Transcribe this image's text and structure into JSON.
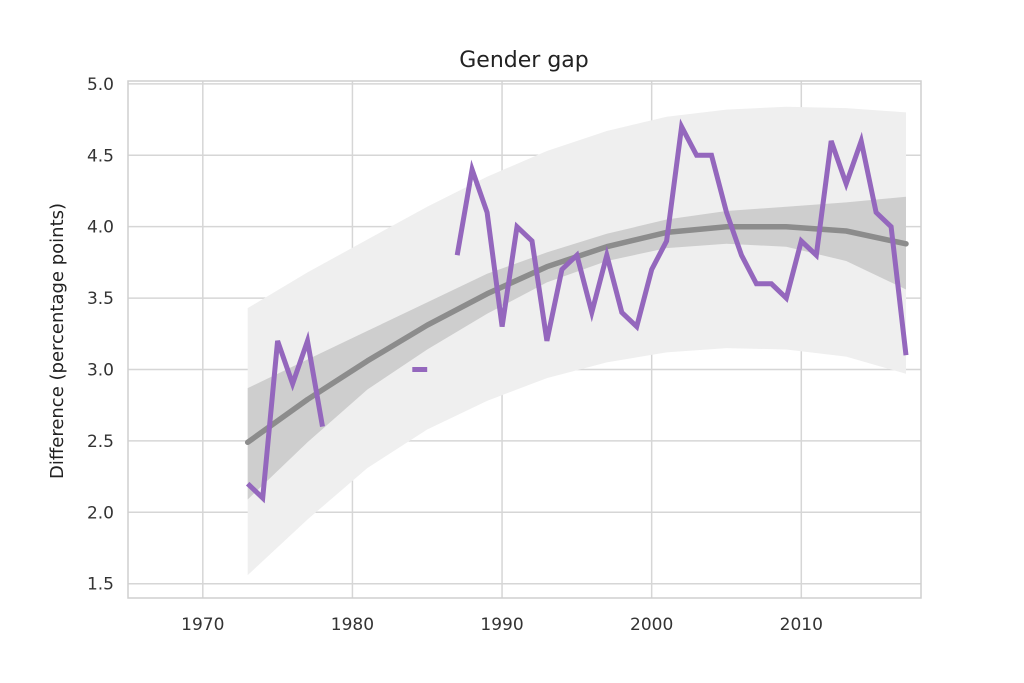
{
  "chart_data": {
    "type": "line",
    "title": "Gender gap",
    "xlabel": "",
    "ylabel": "Difference (percentage points)",
    "xlim": [
      1965,
      2018
    ],
    "ylim": [
      1.4,
      5.02
    ],
    "xticks": [
      1970,
      1980,
      1990,
      2000,
      2010
    ],
    "yticks": [
      1.5,
      2.0,
      2.5,
      3.0,
      3.5,
      4.0,
      4.5,
      5.0
    ],
    "xtick_labels": [
      "1970",
      "1980",
      "1990",
      "2000",
      "2010"
    ],
    "ytick_labels": [
      "1.5",
      "2.0",
      "2.5",
      "3.0",
      "3.5",
      "4.0",
      "4.5",
      "5.0"
    ],
    "grid": true,
    "colors": {
      "series": "#9467bd",
      "trend": "#8c8c8c",
      "band_inner": "#c8c8c8",
      "band_outer": "#efefef",
      "grid": "#d6d6d6"
    },
    "series": [
      {
        "points": [
          [
            1973,
            2.2
          ],
          [
            1974,
            2.1
          ],
          [
            1975,
            3.2
          ],
          [
            1976,
            2.9
          ],
          [
            1977,
            3.2
          ],
          [
            1978,
            2.6
          ],
          [
            1984,
            3.0
          ],
          [
            1985,
            3.0
          ],
          [
            1987,
            3.8
          ],
          [
            1988,
            4.4
          ],
          [
            1989,
            4.1
          ],
          [
            1990,
            3.3
          ],
          [
            1991,
            4.0
          ],
          [
            1992,
            3.9
          ],
          [
            1993,
            3.2
          ],
          [
            1994,
            3.7
          ],
          [
            1995,
            3.8
          ],
          [
            1996,
            3.4
          ],
          [
            1997,
            3.8
          ],
          [
            1998,
            3.4
          ],
          [
            1999,
            3.3
          ],
          [
            2000,
            3.7
          ],
          [
            2001,
            3.9
          ],
          [
            2002,
            4.7
          ],
          [
            2003,
            4.5
          ],
          [
            2004,
            4.5
          ],
          [
            2005,
            4.1
          ],
          [
            2006,
            3.8
          ],
          [
            2007,
            3.6
          ],
          [
            2008,
            3.6
          ],
          [
            2009,
            3.5
          ],
          [
            2010,
            3.9
          ],
          [
            2011,
            3.8
          ],
          [
            2012,
            4.6
          ],
          [
            2013,
            4.3
          ],
          [
            2014,
            4.6
          ],
          [
            2015,
            4.1
          ],
          [
            2016,
            4.0
          ],
          [
            2017,
            3.1
          ]
        ],
        "segments": [
          [
            1973,
            1978
          ],
          [
            1984,
            1985
          ],
          [
            1987,
            2017
          ]
        ]
      }
    ],
    "trend": {
      "x": [
        1973,
        1977,
        1981,
        1985,
        1989,
        1993,
        1997,
        2001,
        2005,
        2009,
        2013,
        2017
      ],
      "y": [
        2.49,
        2.79,
        3.06,
        3.31,
        3.53,
        3.72,
        3.86,
        3.96,
        4.0,
        4.0,
        3.97,
        3.88
      ],
      "inner_band_lower": [
        2.09,
        2.49,
        2.86,
        3.14,
        3.39,
        3.61,
        3.76,
        3.85,
        3.88,
        3.86,
        3.76,
        3.56
      ],
      "inner_band_upper": [
        2.87,
        3.07,
        3.27,
        3.47,
        3.67,
        3.82,
        3.95,
        4.05,
        4.11,
        4.14,
        4.17,
        4.21
      ],
      "outer_band_lower": [
        1.56,
        1.95,
        2.31,
        2.58,
        2.78,
        2.94,
        3.05,
        3.12,
        3.15,
        3.14,
        3.09,
        2.97
      ],
      "outer_band_upper": [
        3.43,
        3.68,
        3.91,
        4.14,
        4.35,
        4.53,
        4.67,
        4.77,
        4.82,
        4.84,
        4.83,
        4.8
      ]
    }
  }
}
